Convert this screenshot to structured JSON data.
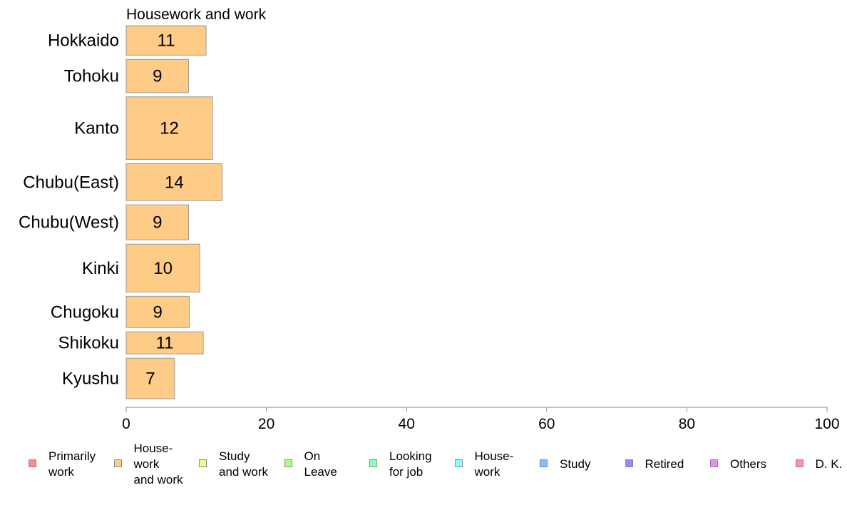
{
  "chart_data": {
    "type": "bar",
    "orientation": "horizontal",
    "title": "Housework and work",
    "categories": [
      "Hokkaido",
      "Tohoku",
      "Kanto",
      "Chubu(East)",
      "Chubu(West)",
      "Kinki",
      "Chugoku",
      "Shikoku",
      "Kyushu"
    ],
    "values": [
      11,
      9,
      12,
      14,
      9,
      10,
      9,
      11,
      7
    ],
    "bar_values": [
      11.4,
      8.9,
      12.3,
      13.7,
      8.9,
      10.5,
      9.0,
      11.0,
      6.9
    ],
    "relative_group_size": [
      0.8,
      0.9,
      1.7,
      1.0,
      0.95,
      1.3,
      0.85,
      0.6,
      1.1
    ],
    "xlim": [
      0,
      100
    ],
    "xticks": [
      "0",
      "20",
      "40",
      "60",
      "80",
      "100"
    ],
    "bar_color": "#ffcc88",
    "bar_edge_color": "#999999",
    "axis_color": "#888888"
  },
  "legend": {
    "items": [
      {
        "label": "Primarily\nwork",
        "color": "#ff8888"
      },
      {
        "label": "House-\nwork\nand work",
        "color": "#ffcc88"
      },
      {
        "label": "Study\nand work",
        "color": "#eeff88"
      },
      {
        "label": "On\nLeave",
        "color": "#aaff88"
      },
      {
        "label": "Looking\nfor job",
        "color": "#88ffbb"
      },
      {
        "label": "House-\nwork",
        "color": "#88ffff"
      },
      {
        "label": "Study",
        "color": "#88bbff"
      },
      {
        "label": "Retired",
        "color": "#9988ff"
      },
      {
        "label": "Others",
        "color": "#ee88ff"
      },
      {
        "label": "D. K.",
        "color": "#ff88cc"
      }
    ]
  }
}
